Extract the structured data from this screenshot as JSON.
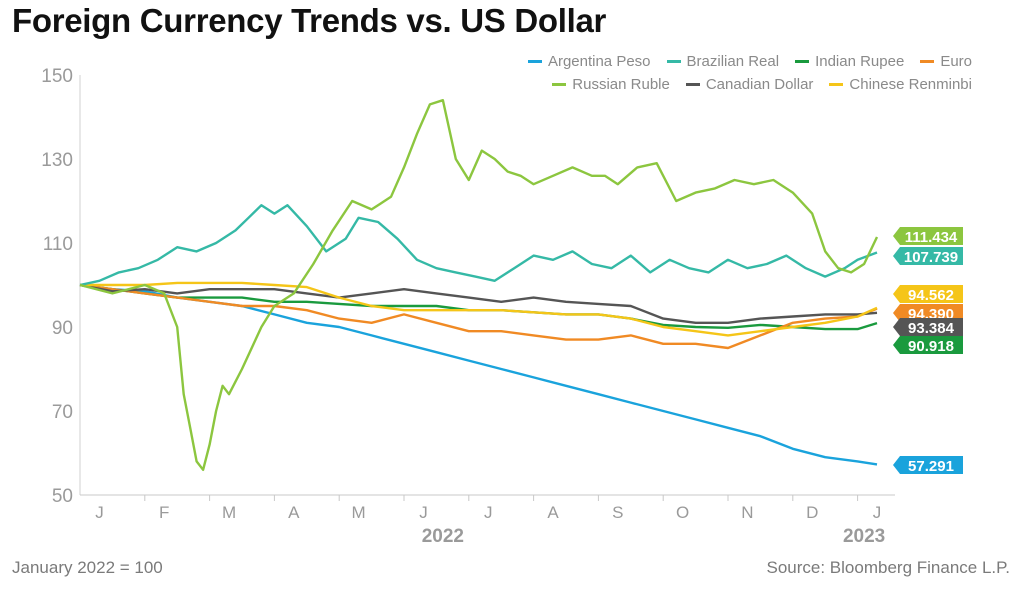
{
  "chart_data": {
    "type": "line",
    "title": "Foreign Currency Trends vs. US Dollar",
    "note": "January 2022 = 100",
    "source": "Source: Bloomberg Finance L.P.",
    "ylim": [
      50,
      150
    ],
    "yticks": [
      50,
      70,
      90,
      110,
      130,
      150
    ],
    "xlim": [
      0,
      12.5
    ],
    "month_labels": [
      "J",
      "F",
      "M",
      "A",
      "M",
      "J",
      "J",
      "A",
      "S",
      "O",
      "N",
      "D",
      "J"
    ],
    "year_labels": [
      {
        "label": "2022",
        "at": 5.6
      },
      {
        "label": "2023",
        "at": 12.1
      }
    ],
    "series": [
      {
        "name": "Argentina Peso",
        "color": "#1aa3dc",
        "end_label": "57.291",
        "last": 57.291,
        "x": [
          0,
          0.5,
          1,
          1.5,
          2,
          2.5,
          3,
          3.5,
          4,
          4.5,
          5,
          5.5,
          6,
          6.5,
          7,
          7.5,
          8,
          8.5,
          9,
          9.5,
          10,
          10.5,
          11,
          11.5,
          12,
          12.3
        ],
        "y": [
          100,
          99,
          98.5,
          97,
          96,
          95,
          93,
          91,
          90,
          88,
          86,
          84,
          82,
          80,
          78,
          76,
          74,
          72,
          70,
          68,
          66,
          64,
          61,
          59,
          58,
          57.291
        ]
      },
      {
        "name": "Brazilian Real",
        "color": "#35b9a6",
        "end_label": "107.739",
        "last": 107.739,
        "x": [
          0,
          0.3,
          0.6,
          0.9,
          1.2,
          1.5,
          1.8,
          2.1,
          2.4,
          2.6,
          2.8,
          3.0,
          3.2,
          3.5,
          3.8,
          4.1,
          4.3,
          4.6,
          4.9,
          5.2,
          5.5,
          5.8,
          6.1,
          6.4,
          6.7,
          7.0,
          7.3,
          7.6,
          7.9,
          8.2,
          8.5,
          8.8,
          9.1,
          9.4,
          9.7,
          10.0,
          10.3,
          10.6,
          10.9,
          11.2,
          11.5,
          11.8,
          12.0,
          12.3
        ],
        "y": [
          100,
          101,
          103,
          104,
          106,
          109,
          108,
          110,
          113,
          116,
          119,
          117,
          119,
          114,
          108,
          111,
          116,
          115,
          111,
          106,
          104,
          103,
          102,
          101,
          104,
          107,
          106,
          108,
          105,
          104,
          107,
          103,
          106,
          104,
          103,
          106,
          104,
          105,
          107,
          104,
          102,
          104,
          106,
          107.739
        ]
      },
      {
        "name": "Indian Rupee",
        "color": "#1a9a3e",
        "end_label": "90.918",
        "last": 90.918,
        "x": [
          0,
          0.5,
          1,
          1.5,
          2,
          2.5,
          3,
          3.5,
          4,
          4.5,
          5,
          5.5,
          6,
          6.5,
          7,
          7.5,
          8,
          8.5,
          9,
          9.5,
          10,
          10.5,
          11,
          11.5,
          12,
          12.3
        ],
        "y": [
          100,
          99,
          98,
          97,
          97,
          97,
          96,
          96,
          95.5,
          95,
          95,
          95,
          94,
          94,
          93.5,
          93,
          93,
          92,
          90.5,
          90,
          89.8,
          90.5,
          90,
          89.5,
          89.5,
          90.918
        ]
      },
      {
        "name": "Euro",
        "color": "#f08a24",
        "end_label": "94.390",
        "last": 94.39,
        "x": [
          0,
          0.5,
          1,
          1.5,
          2,
          2.5,
          3,
          3.5,
          4,
          4.5,
          5,
          5.5,
          6,
          6.5,
          7,
          7.5,
          8,
          8.5,
          9,
          9.5,
          10,
          10.5,
          11,
          11.5,
          12,
          12.3
        ],
        "y": [
          100,
          99,
          98,
          97,
          96,
          95,
          95,
          94,
          92,
          91,
          93,
          91,
          89,
          89,
          88,
          87,
          87,
          88,
          86,
          86,
          85,
          88,
          91,
          92,
          92.5,
          94.39
        ]
      },
      {
        "name": "Russian Ruble",
        "color": "#8cc63f",
        "end_label": "111.434",
        "last": 111.434,
        "x": [
          0,
          0.5,
          1,
          1.3,
          1.5,
          1.6,
          1.7,
          1.8,
          1.9,
          2.0,
          2.1,
          2.2,
          2.3,
          2.5,
          2.8,
          3.0,
          3.3,
          3.6,
          3.9,
          4.2,
          4.5,
          4.8,
          5.0,
          5.2,
          5.4,
          5.6,
          5.8,
          6.0,
          6.2,
          6.4,
          6.6,
          6.8,
          7.0,
          7.3,
          7.6,
          7.9,
          8.1,
          8.3,
          8.6,
          8.9,
          9.2,
          9.5,
          9.8,
          10.1,
          10.4,
          10.7,
          11.0,
          11.3,
          11.5,
          11.7,
          11.9,
          12.1,
          12.3
        ],
        "y": [
          100,
          98,
          100,
          98,
          90,
          74,
          66,
          58,
          56,
          62,
          70,
          76,
          74,
          80,
          90,
          95,
          98,
          105,
          113,
          120,
          118,
          121,
          128,
          136,
          143,
          144,
          130,
          125,
          132,
          130,
          127,
          126,
          124,
          126,
          128,
          126,
          126,
          124,
          128,
          129,
          120,
          122,
          123,
          125,
          124,
          125,
          122,
          117,
          108,
          104,
          103,
          105,
          111.434
        ]
      },
      {
        "name": "Canadian Dollar",
        "color": "#555555",
        "end_label": "93.384",
        "last": 93.384,
        "x": [
          0,
          0.5,
          1,
          1.5,
          2,
          2.5,
          3,
          3.5,
          4,
          4.5,
          5,
          5.5,
          6,
          6.5,
          7,
          7.5,
          8,
          8.5,
          9,
          9.5,
          10,
          10.5,
          11,
          11.5,
          12,
          12.3
        ],
        "y": [
          100,
          98.5,
          99,
          98,
          99,
          99,
          99,
          98,
          97,
          98,
          99,
          98,
          97,
          96,
          97,
          96,
          95.5,
          95,
          92,
          91,
          91,
          92,
          92.5,
          93,
          93,
          93.384
        ]
      },
      {
        "name": "Chinese Renminbi",
        "color": "#f5c518",
        "end_label": "94.562",
        "last": 94.562,
        "x": [
          0,
          0.5,
          1,
          1.5,
          2,
          2.5,
          3,
          3.5,
          4,
          4.5,
          5,
          5.5,
          6,
          6.5,
          7,
          7.5,
          8,
          8.5,
          9,
          9.5,
          10,
          10.5,
          11,
          11.5,
          12,
          12.3
        ],
        "y": [
          100,
          100,
          100,
          100.5,
          100.5,
          100.5,
          100,
          99.5,
          97,
          95,
          94,
          94,
          94,
          94,
          93.5,
          93,
          93,
          92,
          90,
          89,
          88,
          89,
          90,
          91,
          92.5,
          94.562
        ]
      }
    ]
  }
}
